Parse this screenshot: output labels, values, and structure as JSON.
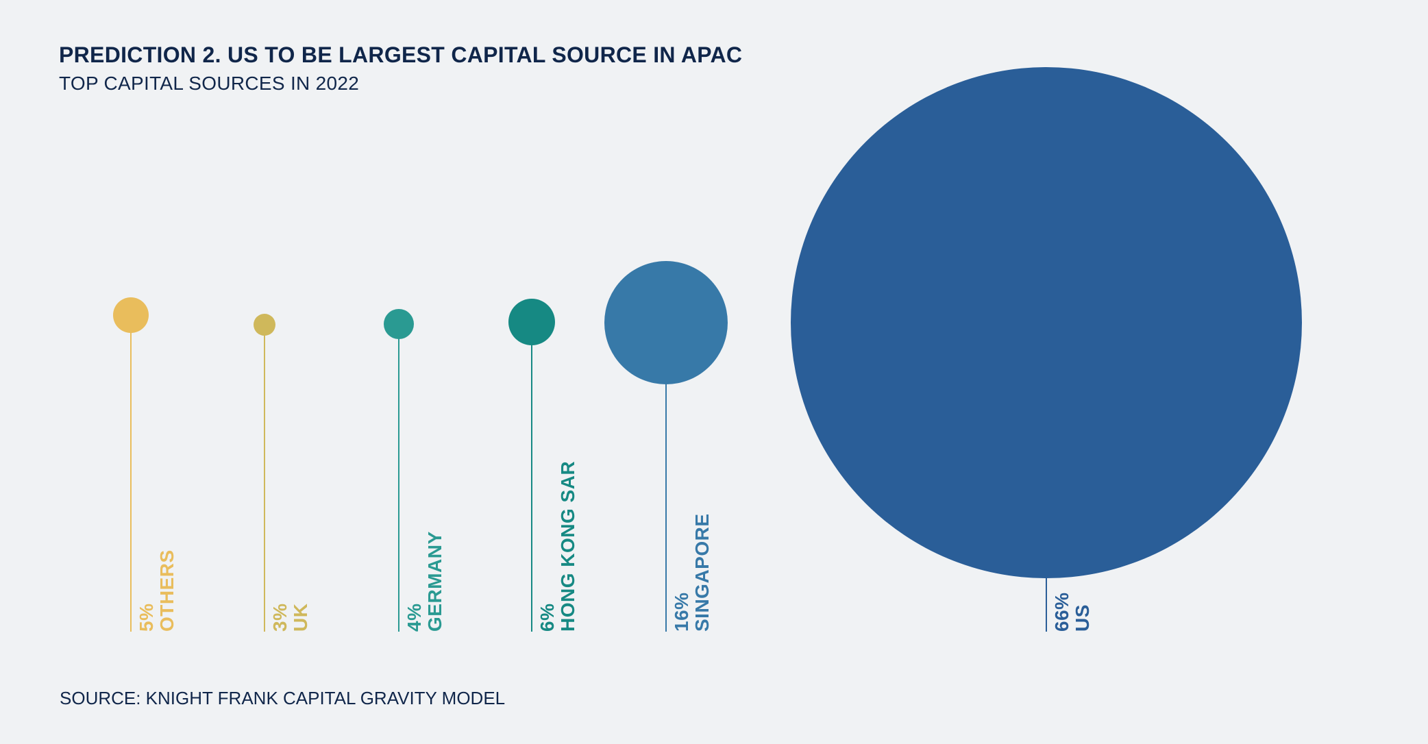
{
  "title": "PREDICTION 2. US TO BE LARGEST CAPITAL SOURCE IN APAC",
  "subtitle": "TOP CAPITAL SOURCES IN 2022",
  "source": "SOURCE: KNIGHT FRANK CAPITAL GRAVITY MODEL",
  "chart_data": {
    "type": "bubble",
    "title": "PREDICTION 2. US TO BE LARGEST CAPITAL SOURCE IN APAC",
    "subtitle": "TOP CAPITAL SOURCES IN 2022",
    "unit": "%",
    "series": [
      {
        "name": "OTHERS",
        "value": 5,
        "label": "5%",
        "color": "#e9bd5c"
      },
      {
        "name": "UK",
        "value": 3,
        "label": "3%",
        "color": "#cfb85b"
      },
      {
        "name": "GERMANY",
        "value": 4,
        "label": "4%",
        "color": "#2a9a92"
      },
      {
        "name": "HONG KONG SAR",
        "value": 6,
        "label": "6%",
        "color": "#168983"
      },
      {
        "name": "SINGAPORE",
        "value": 16,
        "label": "16%",
        "color": "#3779a8"
      },
      {
        "name": "US",
        "value": 66,
        "label": "66%",
        "color": "#2a5e98"
      }
    ]
  }
}
